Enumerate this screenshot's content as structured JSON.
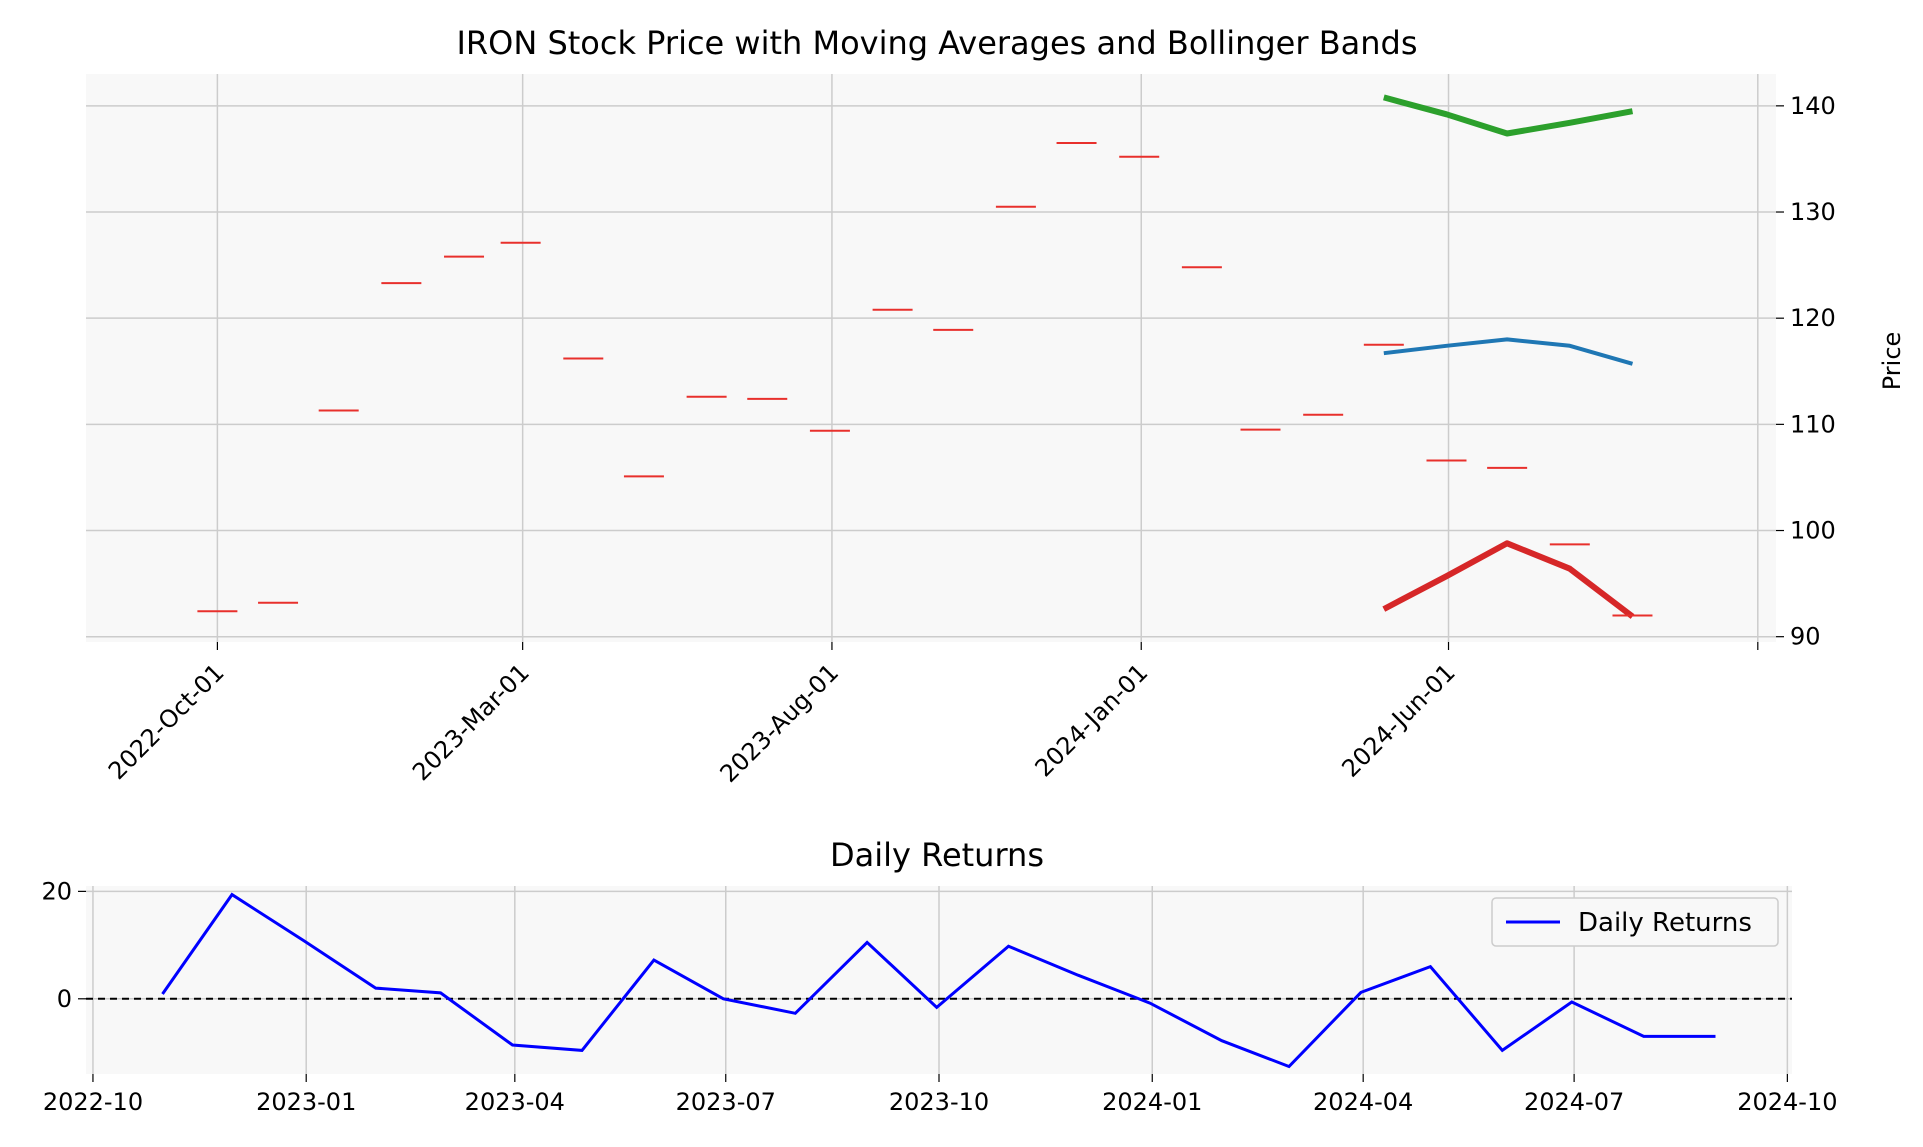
{
  "chart_data": [
    {
      "type": "line",
      "title": "IRON Stock Price with Moving Averages and Bollinger Bands",
      "xlabel": "",
      "ylabel": "Price",
      "y_axis_side": "right",
      "ylim": [
        89.5,
        143
      ],
      "yticks": [
        90,
        100,
        110,
        120,
        130,
        140
      ],
      "x_range": [
        "2022-07-28",
        "2024-11-10"
      ],
      "xticks": [
        {
          "date": "2022-10-01",
          "label": "2022-Oct-01"
        },
        {
          "date": "2023-03-01",
          "label": "2023-Mar-01"
        },
        {
          "date": "2023-08-01",
          "label": "2023-Aug-01"
        },
        {
          "date": "2024-01-01",
          "label": "2024-Jan-01"
        },
        {
          "date": "2024-06-01",
          "label": "2024-Jun-01"
        },
        {
          "date": "2024-11-01",
          "label": ""
        }
      ],
      "grid": true,
      "price_marks": {
        "color": "#e8302c",
        "points": [
          {
            "x": "2022-10-01",
            "y": 92.4
          },
          {
            "x": "2022-10-31",
            "y": 93.2
          },
          {
            "x": "2022-11-30",
            "y": 111.3
          },
          {
            "x": "2022-12-31",
            "y": 123.3
          },
          {
            "x": "2023-01-31",
            "y": 125.8
          },
          {
            "x": "2023-02-28",
            "y": 127.1
          },
          {
            "x": "2023-03-31",
            "y": 116.2
          },
          {
            "x": "2023-04-30",
            "y": 105.1
          },
          {
            "x": "2023-05-31",
            "y": 112.6
          },
          {
            "x": "2023-06-30",
            "y": 112.4
          },
          {
            "x": "2023-07-31",
            "y": 109.4
          },
          {
            "x": "2023-08-31",
            "y": 120.8
          },
          {
            "x": "2023-09-30",
            "y": 118.9
          },
          {
            "x": "2023-10-31",
            "y": 130.5
          },
          {
            "x": "2023-11-30",
            "y": 136.5
          },
          {
            "x": "2023-12-31",
            "y": 135.2
          },
          {
            "x": "2024-01-31",
            "y": 124.8
          },
          {
            "x": "2024-02-29",
            "y": 109.5
          },
          {
            "x": "2024-03-31",
            "y": 110.9
          },
          {
            "x": "2024-04-30",
            "y": 117.5
          },
          {
            "x": "2024-05-31",
            "y": 106.6
          },
          {
            "x": "2024-06-30",
            "y": 105.9
          },
          {
            "x": "2024-07-31",
            "y": 98.7
          },
          {
            "x": "2024-08-31",
            "y": 92.0
          }
        ]
      },
      "series": [
        {
          "color": "#2ca02c",
          "width": 6,
          "x": [
            "2024-04-30",
            "2024-05-31",
            "2024-06-30",
            "2024-07-31",
            "2024-08-31"
          ],
          "y": [
            140.8,
            139.2,
            137.4,
            138.4,
            139.5
          ]
        },
        {
          "color": "#1f77b4",
          "width": 4,
          "x": [
            "2024-04-30",
            "2024-05-31",
            "2024-06-30",
            "2024-07-31",
            "2024-08-31"
          ],
          "y": [
            116.7,
            117.4,
            118.0,
            117.4,
            115.7
          ]
        },
        {
          "color": "#d62728",
          "width": 6,
          "x": [
            "2024-04-30",
            "2024-05-31",
            "2024-06-30",
            "2024-07-31",
            "2024-08-31"
          ],
          "y": [
            92.6,
            95.7,
            98.8,
            96.4,
            91.9
          ]
        }
      ]
    },
    {
      "type": "line",
      "title": "Daily Returns",
      "xlabel": "",
      "ylabel": "",
      "ylim": [
        -14,
        21
      ],
      "yticks": [
        0,
        20
      ],
      "x_range": [
        "2022-09-28",
        "2024-10-03"
      ],
      "xticks": [
        "2022-10",
        "2023-01",
        "2023-04",
        "2023-07",
        "2023-10",
        "2024-01",
        "2024-04",
        "2024-07",
        "2024-10"
      ],
      "grid": true,
      "zero_line": {
        "y": 0,
        "style": "dashed",
        "color": "#000000"
      },
      "legend": {
        "position": "top-right",
        "entries": [
          "Daily Returns"
        ]
      },
      "series": [
        {
          "name": "Daily Returns",
          "color": "#0000ff",
          "x": [
            "2022-10-31",
            "2022-11-30",
            "2022-12-31",
            "2023-01-31",
            "2023-02-28",
            "2023-03-31",
            "2023-04-30",
            "2023-05-31",
            "2023-06-30",
            "2023-07-31",
            "2023-08-31",
            "2023-09-30",
            "2023-10-31",
            "2023-11-30",
            "2023-12-31",
            "2024-01-31",
            "2024-02-29",
            "2024-03-31",
            "2024-04-30",
            "2024-05-31",
            "2024-06-30",
            "2024-07-31",
            "2024-08-31"
          ],
          "y": [
            0.9,
            19.4,
            10.8,
            2.0,
            1.1,
            -8.6,
            -9.6,
            7.2,
            0.0,
            -2.7,
            10.5,
            -1.6,
            9.8,
            4.4,
            -0.8,
            -7.8,
            -12.6,
            1.2,
            6.0,
            -9.6,
            -0.6,
            -7.0,
            -7.0
          ]
        }
      ]
    }
  ]
}
